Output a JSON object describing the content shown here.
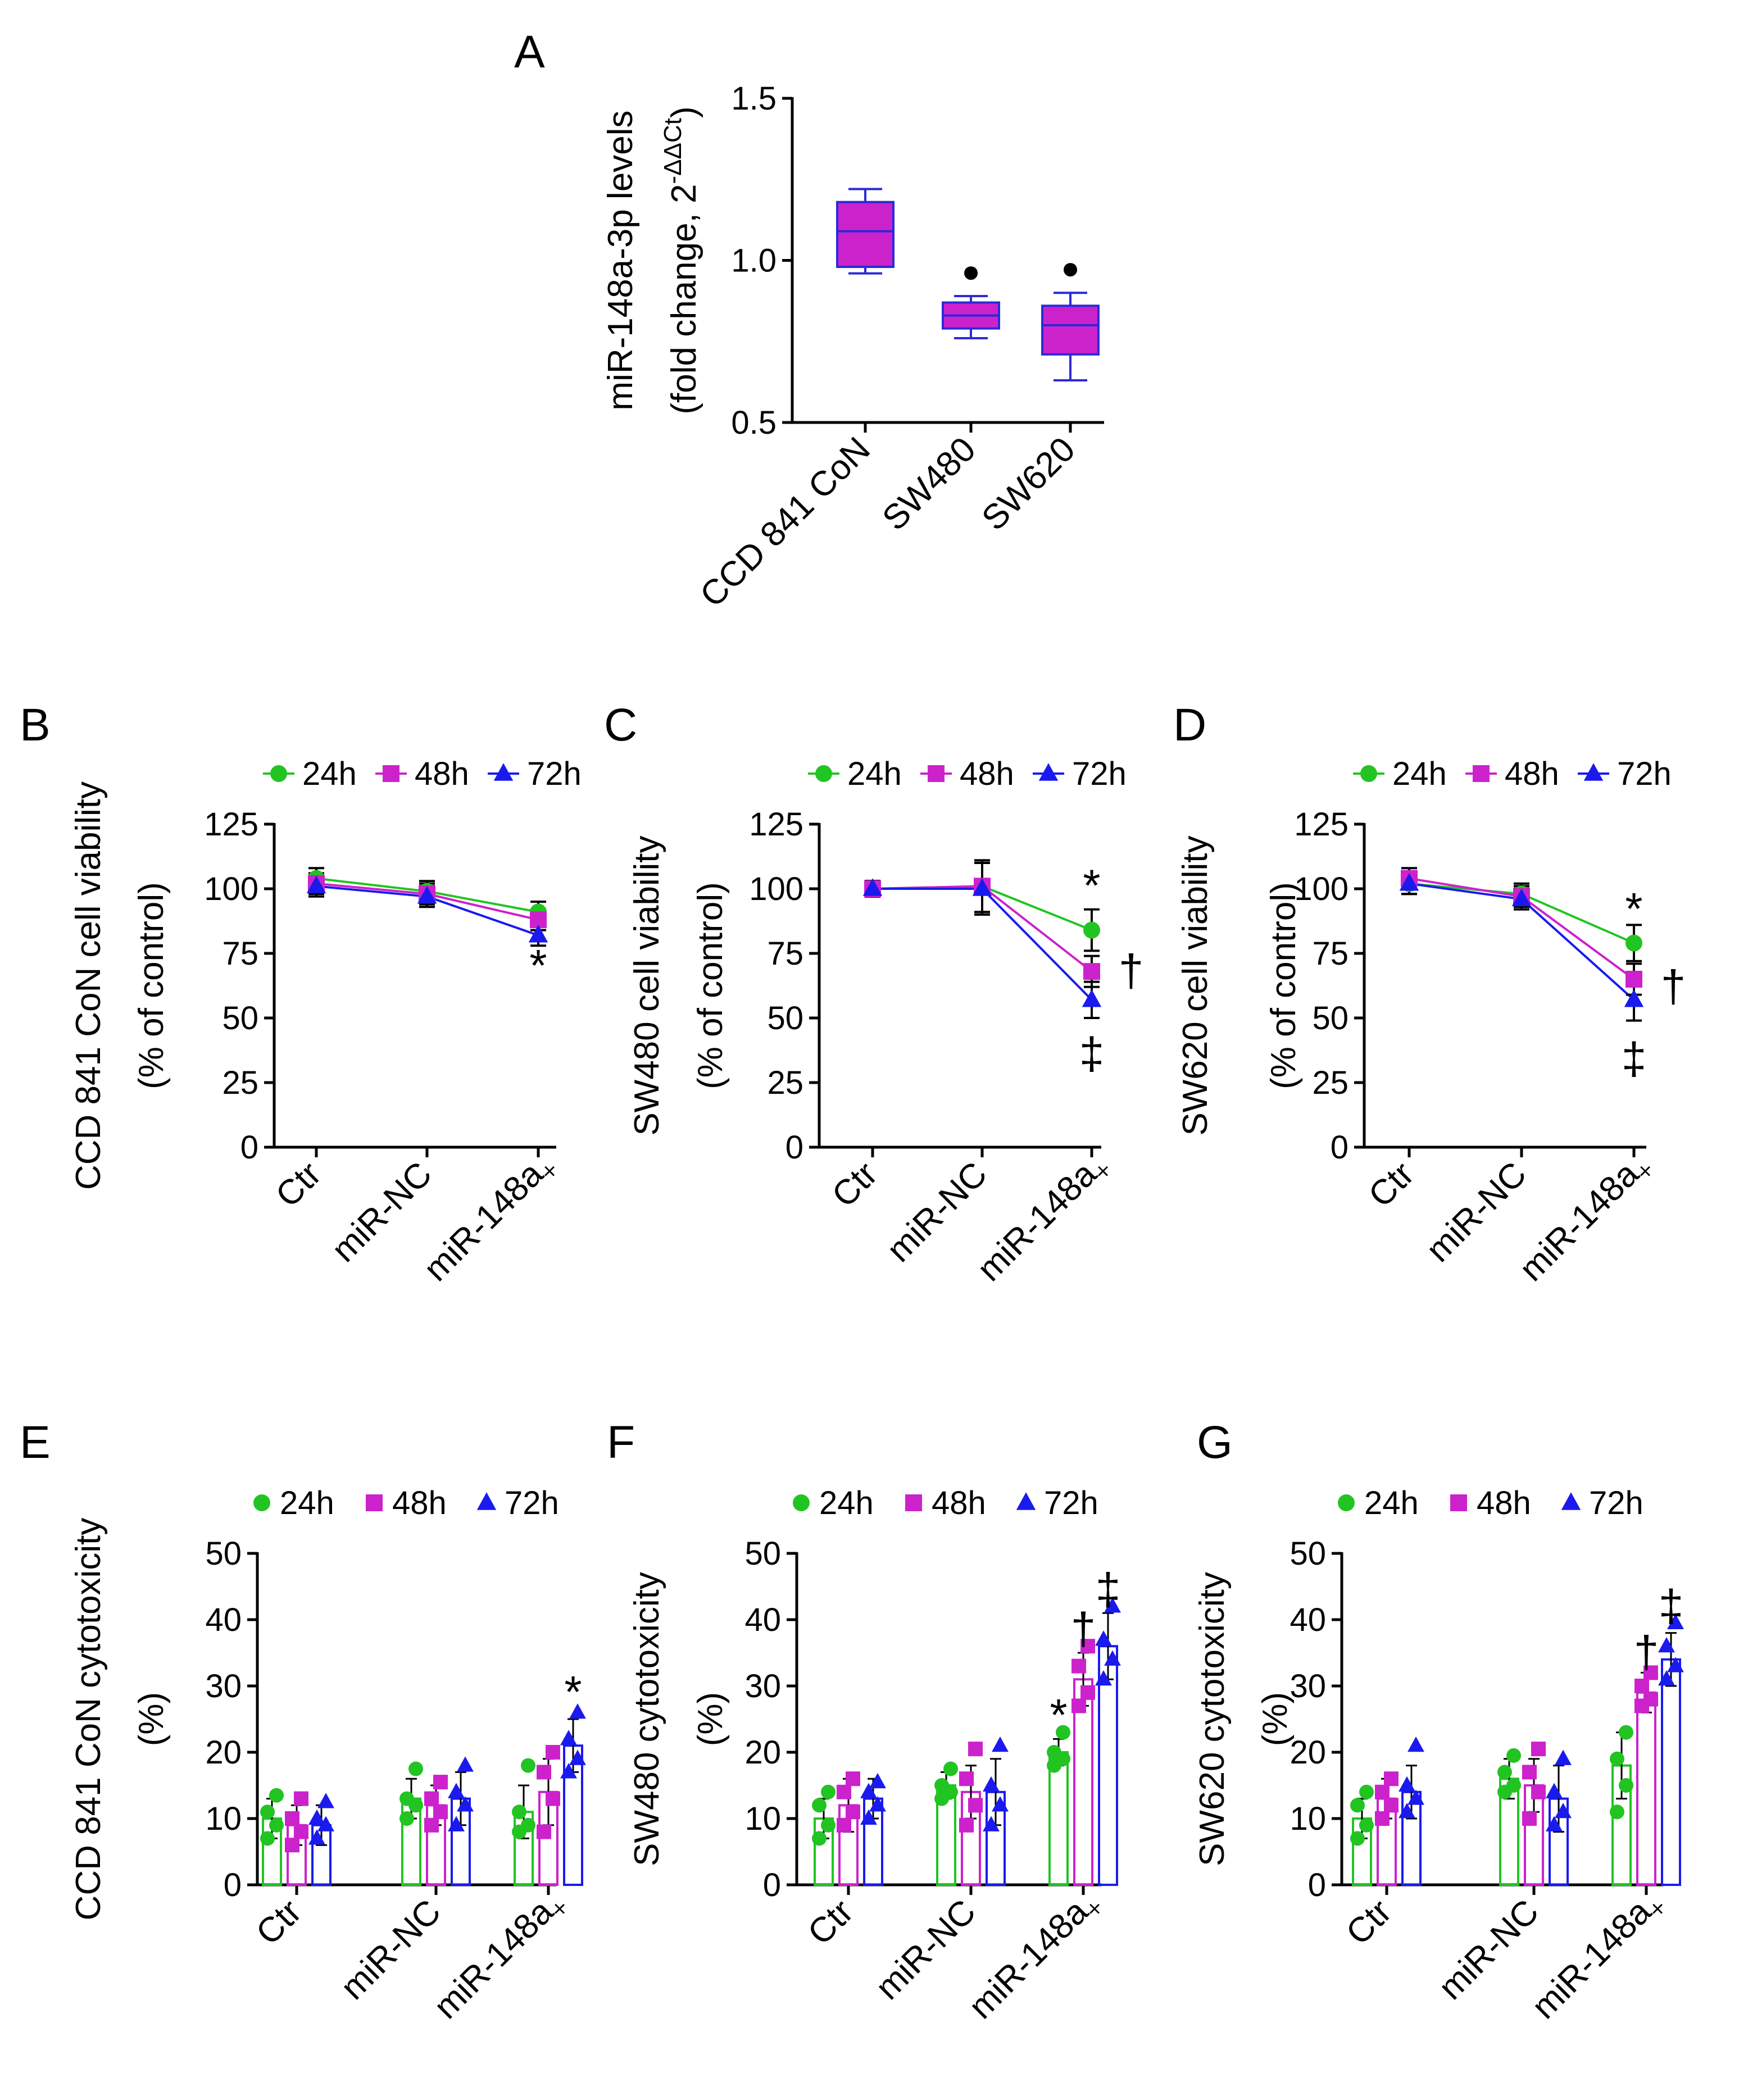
{
  "colors": {
    "24h": "#22c422",
    "48h": "#cc22cc",
    "72h": "#1a1aee",
    "box": "#cc22cc",
    "boxEdge": "#2a2ad8"
  },
  "chart_data": [
    {
      "panel": "A",
      "type": "box",
      "ylabel_lines": [
        "miR-148a-3p levels",
        "(fold change, 2"
      ],
      "ylabel_sup": "-ΔΔCt",
      "ylabel_close": ")",
      "ylim": [
        0.5,
        1.5
      ],
      "yticks": [
        0.5,
        1.0,
        1.5
      ],
      "ytick_labels": [
        "0.5",
        "1.0",
        "1.5"
      ],
      "categories": [
        "CCD 841 CoN",
        "SW480",
        "SW620"
      ],
      "boxes": [
        {
          "min": 0.96,
          "q1": 0.98,
          "median": 1.09,
          "q3": 1.18,
          "max": 1.22,
          "sig": ""
        },
        {
          "min": 0.76,
          "q1": 0.79,
          "median": 0.83,
          "q3": 0.87,
          "max": 0.89,
          "sig": "●"
        },
        {
          "min": 0.63,
          "q1": 0.71,
          "median": 0.8,
          "q3": 0.86,
          "max": 0.9,
          "sig": "●"
        }
      ]
    },
    {
      "panel": "B",
      "type": "line",
      "ylabel_lines": [
        "CCD 841 CoN cell viability",
        "(% of control)"
      ],
      "categories": [
        "Ctr",
        "miR-NC",
        "miR-148a"
      ],
      "cat_marks": [
        "",
        "",
        "×"
      ],
      "ylim": [
        0,
        125
      ],
      "yticks": [
        0,
        25,
        50,
        75,
        100,
        125
      ],
      "ytick_labels": [
        "0",
        "25",
        "50",
        "75",
        "100",
        "125"
      ],
      "legend": [
        "24h",
        "48h",
        "72h"
      ],
      "series": [
        {
          "name": "24h",
          "values": [
            104,
            99,
            91
          ],
          "err": [
            4,
            4,
            4
          ]
        },
        {
          "name": "48h",
          "values": [
            102,
            98,
            88
          ],
          "err": [
            4,
            4,
            4
          ]
        },
        {
          "name": "72h",
          "values": [
            101,
            97,
            82
          ],
          "err": [
            4,
            4,
            4
          ]
        }
      ],
      "annotations": [
        {
          "text": "*",
          "cat": 2,
          "y": 70
        }
      ]
    },
    {
      "panel": "C",
      "type": "line",
      "ylabel_lines": [
        "SW480 cell viability",
        "(% of control)"
      ],
      "categories": [
        "Ctr",
        "miR-NC",
        "miR-148a"
      ],
      "cat_marks": [
        "",
        "",
        "×"
      ],
      "ylim": [
        0,
        125
      ],
      "yticks": [
        0,
        25,
        50,
        75,
        100,
        125
      ],
      "ytick_labels": [
        "0",
        "25",
        "50",
        "75",
        "100",
        "125"
      ],
      "legend": [
        "24h",
        "48h",
        "72h"
      ],
      "series": [
        {
          "name": "24h",
          "values": [
            100,
            101,
            84
          ],
          "err": [
            3,
            10,
            8
          ]
        },
        {
          "name": "48h",
          "values": [
            100,
            101,
            68
          ],
          "err": [
            3,
            10,
            6
          ]
        },
        {
          "name": "72h",
          "values": [
            100,
            100,
            57
          ],
          "err": [
            3,
            10,
            7
          ]
        }
      ],
      "annotations": [
        {
          "text": "*",
          "cat": 2,
          "y": 101
        },
        {
          "text": "†",
          "cat": 2,
          "y": 68,
          "dx": 1
        },
        {
          "text": "‡",
          "cat": 2,
          "y": 36
        }
      ]
    },
    {
      "panel": "D",
      "type": "line",
      "ylabel_lines": [
        "SW620 cell viability",
        "(% of control)"
      ],
      "categories": [
        "Ctr",
        "miR-NC",
        "miR-148a"
      ],
      "cat_marks": [
        "",
        "",
        "×"
      ],
      "ylim": [
        0,
        125
      ],
      "yticks": [
        0,
        25,
        50,
        75,
        100,
        125
      ],
      "ytick_labels": [
        "0",
        "25",
        "50",
        "75",
        "100",
        "125"
      ],
      "legend": [
        "24h",
        "48h",
        "72h"
      ],
      "series": [
        {
          "name": "24h",
          "values": [
            102,
            98,
            79
          ],
          "err": [
            4,
            4,
            7
          ]
        },
        {
          "name": "48h",
          "values": [
            104,
            97,
            65
          ],
          "err": [
            4,
            4,
            6
          ]
        },
        {
          "name": "72h",
          "values": [
            102,
            96,
            57
          ],
          "err": [
            4,
            4,
            8
          ]
        }
      ],
      "annotations": [
        {
          "text": "*",
          "cat": 2,
          "y": 92
        },
        {
          "text": "†",
          "cat": 2,
          "y": 62,
          "dx": 1
        },
        {
          "text": "‡",
          "cat": 2,
          "y": 34
        }
      ]
    },
    {
      "panel": "E",
      "type": "bar",
      "ylabel_lines": [
        "CCD 841 CoN cytotoxicity",
        "(%)"
      ],
      "categories": [
        "Ctr",
        "miR-NC",
        "miR-148a"
      ],
      "cat_marks": [
        "",
        "",
        "×"
      ],
      "ylim": [
        0,
        50
      ],
      "yticks": [
        0,
        10,
        20,
        30,
        40,
        50
      ],
      "ytick_labels": [
        "0",
        "10",
        "20",
        "30",
        "40",
        "50"
      ],
      "legend": [
        "24h",
        "48h",
        "72h"
      ],
      "series": [
        {
          "name": "24h",
          "values": [
            10,
            13,
            11
          ],
          "err": [
            3,
            3,
            4
          ],
          "points": [
            [
              7,
              9,
              11,
              13.5
            ],
            [
              10,
              12,
              13,
              17.5
            ],
            [
              8,
              9,
              11,
              18
            ]
          ]
        },
        {
          "name": "48h",
          "values": [
            9,
            12,
            14
          ],
          "err": [
            3,
            3,
            5
          ],
          "points": [
            [
              6,
              8,
              10,
              13
            ],
            [
              9,
              11,
              13,
              15.5
            ],
            [
              8,
              13,
              17,
              20
            ]
          ]
        },
        {
          "name": "72h",
          "values": [
            9,
            13,
            21
          ],
          "err": [
            3,
            4,
            4
          ],
          "points": [
            [
              7,
              9,
              10,
              12.5
            ],
            [
              9,
              12,
              14,
              18
            ],
            [
              17,
              19,
              22,
              26
            ]
          ]
        }
      ],
      "annotations": [
        {
          "text": "*",
          "cat": 2,
          "series": 2,
          "y": 29
        }
      ]
    },
    {
      "panel": "F",
      "type": "bar",
      "ylabel_lines": [
        "SW480 cytotoxicity",
        "(%)"
      ],
      "categories": [
        "Ctr",
        "miR-NC",
        "miR-148a"
      ],
      "cat_marks": [
        "",
        "",
        "×"
      ],
      "ylim": [
        0,
        50
      ],
      "yticks": [
        0,
        10,
        20,
        30,
        40,
        50
      ],
      "ytick_labels": [
        "0",
        "10",
        "20",
        "30",
        "40",
        "50"
      ],
      "legend": [
        "24h",
        "48h",
        "72h"
      ],
      "series": [
        {
          "name": "24h",
          "values": [
            10,
            15,
            20
          ],
          "err": [
            3,
            2,
            2
          ],
          "points": [
            [
              7,
              9,
              12,
              14
            ],
            [
              13,
              14,
              15,
              17.5
            ],
            [
              18,
              19,
              20,
              23
            ]
          ]
        },
        {
          "name": "48h",
          "values": [
            12,
            14,
            31
          ],
          "err": [
            4,
            4,
            4
          ],
          "points": [
            [
              9,
              11,
              14,
              16
            ],
            [
              9,
              12,
              16,
              20.5
            ],
            [
              27,
              29,
              33,
              36
            ]
          ]
        },
        {
          "name": "72h",
          "values": [
            13,
            14,
            36
          ],
          "err": [
            3,
            5,
            5
          ],
          "points": [
            [
              10,
              12,
              14,
              15.5
            ],
            [
              9,
              12,
              15,
              21
            ],
            [
              31,
              34,
              37,
              42
            ]
          ]
        }
      ],
      "annotations": [
        {
          "text": "*",
          "cat": 2,
          "series": 0,
          "y": 25.5
        },
        {
          "text": "†",
          "cat": 2,
          "series": 1,
          "y": 38.5
        },
        {
          "text": "‡",
          "cat": 2,
          "series": 2,
          "y": 44.5
        }
      ]
    },
    {
      "panel": "G",
      "type": "bar",
      "ylabel_lines": [
        "SW620 cytotoxicity",
        "(%)"
      ],
      "categories": [
        "Ctr",
        "miR-NC",
        "miR-148a"
      ],
      "cat_marks": [
        "",
        "",
        "×"
      ],
      "ylim": [
        0,
        50
      ],
      "yticks": [
        0,
        10,
        20,
        30,
        40,
        50
      ],
      "ytick_labels": [
        "0",
        "10",
        "20",
        "30",
        "40",
        "50"
      ],
      "legend": [
        "24h",
        "48h",
        "72h"
      ],
      "series": [
        {
          "name": "24h",
          "values": [
            10,
            16,
            18
          ],
          "err": [
            3,
            3,
            5
          ],
          "points": [
            [
              7,
              9,
              12,
              14
            ],
            [
              14,
              15,
              17,
              19.5
            ],
            [
              11,
              15,
              19,
              23
            ]
          ]
        },
        {
          "name": "48h",
          "values": [
            13,
            15,
            29
          ],
          "err": [
            3,
            4,
            3
          ],
          "points": [
            [
              10,
              12,
              14,
              16
            ],
            [
              10,
              14,
              17,
              20.5
            ],
            [
              27,
              28,
              30,
              32
            ]
          ]
        },
        {
          "name": "72h",
          "values": [
            14,
            13,
            34
          ],
          "err": [
            4,
            5,
            4
          ],
          "points": [
            [
              11,
              13,
              15,
              21
            ],
            [
              9,
              11,
              14,
              19
            ],
            [
              31,
              33,
              36,
              39.5
            ]
          ]
        }
      ],
      "annotations": [
        {
          "text": "†",
          "cat": 2,
          "series": 1,
          "y": 35
        },
        {
          "text": "‡",
          "cat": 2,
          "series": 2,
          "y": 42
        }
      ]
    }
  ]
}
